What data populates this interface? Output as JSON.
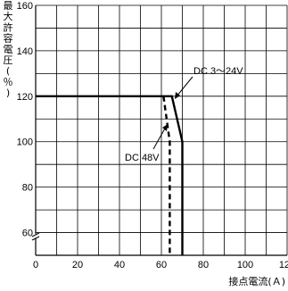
{
  "chart_data": {
    "type": "line",
    "title": "",
    "xlabel": "接点電流(Ａ)",
    "ylabel": "最大許容電圧(％)",
    "xlim": [
      0,
      120
    ],
    "ylim": [
      50,
      160
    ],
    "x_ticks": [
      "0",
      "20",
      "40",
      "60",
      "80",
      "100",
      "120"
    ],
    "y_ticks": [
      "60",
      "80",
      "100",
      "120",
      "140",
      "160"
    ],
    "grid": true,
    "axis_break": "y-axis near 50",
    "series": [
      {
        "name": "DC 3～24V",
        "style": "solid",
        "x": [
          0,
          65,
          70,
          70,
          70
        ],
        "y": [
          120,
          120,
          100,
          50,
          50
        ]
      },
      {
        "name": "DC 48V",
        "style": "dashed",
        "x": [
          61,
          64,
          64
        ],
        "y": [
          120,
          100,
          50
        ]
      }
    ],
    "annotations": [
      {
        "text": "DC 3～24V"
      },
      {
        "text": "DC 48V"
      }
    ]
  }
}
